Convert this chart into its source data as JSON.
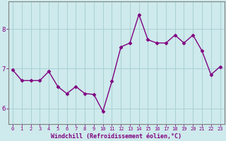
{
  "x": [
    0,
    1,
    2,
    3,
    4,
    5,
    6,
    7,
    8,
    9,
    10,
    11,
    12,
    13,
    14,
    15,
    16,
    17,
    18,
    19,
    20,
    21,
    22,
    23
  ],
  "y": [
    6.97,
    6.7,
    6.7,
    6.7,
    6.93,
    6.55,
    6.37,
    6.55,
    6.37,
    6.35,
    5.92,
    6.68,
    7.55,
    7.65,
    8.37,
    7.73,
    7.65,
    7.65,
    7.85,
    7.65,
    7.85,
    7.45,
    6.85,
    7.05
  ],
  "line_color": "#800080",
  "marker": "D",
  "markersize": 2.5,
  "linewidth": 1.0,
  "xlabel": "Windchill (Refroidissement éolien,°C)",
  "ylabel": "",
  "xlim": [
    -0.5,
    23.5
  ],
  "ylim": [
    5.6,
    8.7
  ],
  "yticks": [
    6,
    7,
    8
  ],
  "xticks": [
    0,
    1,
    2,
    3,
    4,
    5,
    6,
    7,
    8,
    9,
    10,
    11,
    12,
    13,
    14,
    15,
    16,
    17,
    18,
    19,
    20,
    21,
    22,
    23
  ],
  "bg_color": "#ceeaec",
  "grid_color": "#a8d0d4",
  "tick_color": "#800080",
  "label_color": "#800080",
  "spine_color": "#808080"
}
